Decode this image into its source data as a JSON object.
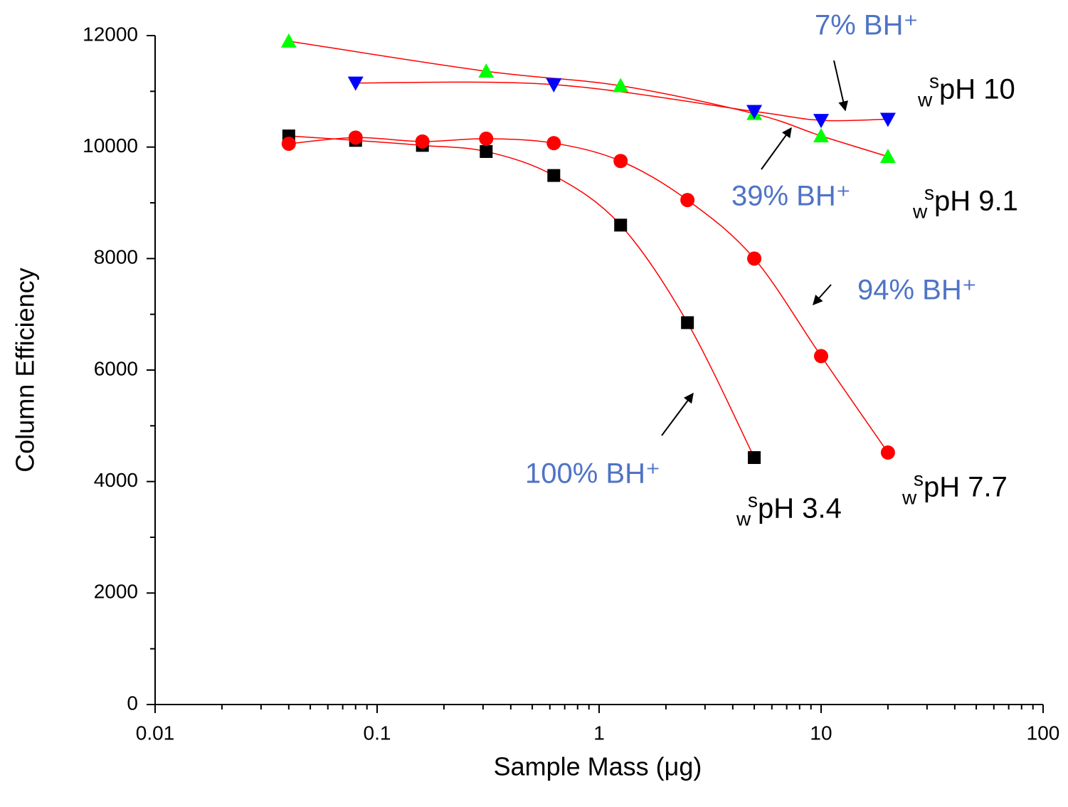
{
  "chart_data": {
    "type": "scatter",
    "xlabel": "Sample Mass (μg)",
    "ylabel": "Column Efficiency",
    "xscale": "log",
    "xlim": [
      0.01,
      100
    ],
    "xticks": [
      0.01,
      0.1,
      1,
      10,
      100
    ],
    "xminorticks": [
      0.02,
      0.03,
      0.04,
      0.05,
      0.06,
      0.07,
      0.08,
      0.09,
      0.2,
      0.3,
      0.4,
      0.5,
      0.6,
      0.7,
      0.8,
      0.9,
      2,
      3,
      4,
      5,
      6,
      7,
      8,
      9,
      20,
      30,
      40,
      50,
      60,
      70,
      80,
      90
    ],
    "ylim": [
      0,
      12000
    ],
    "yticks": [
      0,
      2000,
      4000,
      6000,
      8000,
      10000,
      12000
    ],
    "yminorticks": [
      1000,
      3000,
      5000,
      7000,
      9000,
      11000
    ],
    "fit_color": "#ff0000",
    "series": [
      {
        "name": "pH 3.4",
        "name_sub": "w",
        "name_sup": "s",
        "marker": "square",
        "color": "#000000",
        "x": [
          0.04,
          0.08,
          0.16,
          0.31,
          0.625,
          1.25,
          2.5,
          5
        ],
        "values": [
          10200,
          10120,
          10030,
          9920,
          9490,
          8600,
          6850,
          4430
        ]
      },
      {
        "name": "pH 7.7",
        "name_sub": "w",
        "name_sup": "s",
        "marker": "circle",
        "color": "#ff0000",
        "x": [
          0.04,
          0.08,
          0.16,
          0.31,
          0.625,
          1.25,
          2.5,
          5,
          10,
          20
        ],
        "values": [
          10060,
          10170,
          10100,
          10150,
          10070,
          9750,
          9050,
          8000,
          6250,
          4520
        ]
      },
      {
        "name": "pH 9.1",
        "name_sub": "w",
        "name_sup": "s",
        "marker": "triangle-up",
        "color": "#00ff00",
        "x": [
          0.04,
          0.31,
          1.25,
          5,
          10,
          20
        ],
        "values": [
          11900,
          11360,
          11100,
          10600,
          10200,
          9830
        ]
      },
      {
        "name": "pH 10",
        "name_sub": "w",
        "name_sup": "s",
        "marker": "triangle-down",
        "color": "#0000ff",
        "x": [
          0.08,
          0.625,
          5,
          10,
          20
        ],
        "values": [
          11150,
          11120,
          10640,
          10480,
          10500
        ]
      }
    ],
    "annotations": [
      "100% BH⁺",
      "94% BH⁺",
      "39% BH⁺",
      "7% BH⁺"
    ]
  }
}
